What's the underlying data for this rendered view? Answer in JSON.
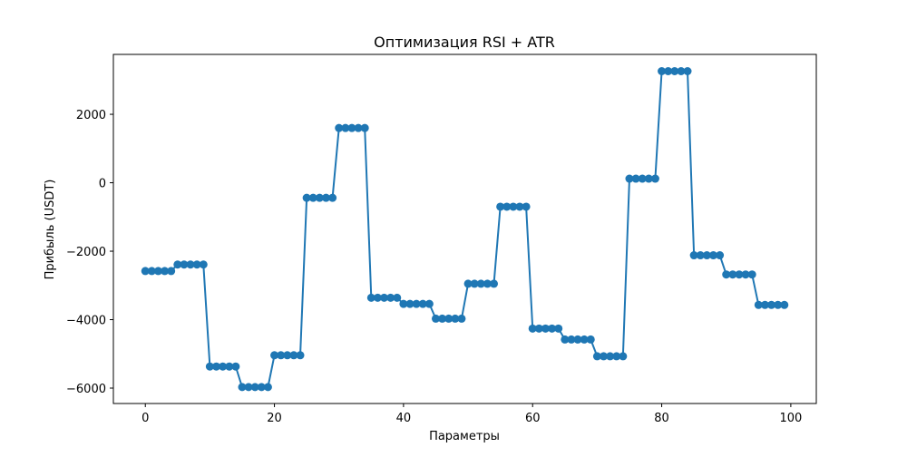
{
  "chart_data": {
    "type": "line",
    "title": "Оптимизация RSI + ATR",
    "xlabel": "Параметры",
    "ylabel": "Прибыль (USDT)",
    "xlim": [
      -4.95,
      103.95
    ],
    "ylim": [
      -6450,
      3750
    ],
    "xticks": [
      0,
      20,
      40,
      60,
      80,
      100
    ],
    "xtick_labels": [
      "0",
      "20",
      "40",
      "60",
      "80",
      "100"
    ],
    "yticks": [
      -6000,
      -4000,
      -2000,
      0,
      2000
    ],
    "ytick_labels": [
      "−6000",
      "−4000",
      "−2000",
      "0",
      "2000"
    ],
    "grid": false,
    "legend": "none",
    "series": [
      {
        "color": "#1f77b4",
        "marker": "circle",
        "x_start": 0,
        "x_step": 1,
        "values": [
          -2580,
          -2580,
          -2580,
          -2580,
          -2580,
          -2390,
          -2390,
          -2390,
          -2390,
          -2390,
          -5370,
          -5370,
          -5370,
          -5370,
          -5370,
          -5970,
          -5970,
          -5970,
          -5970,
          -5970,
          -5040,
          -5040,
          -5040,
          -5040,
          -5040,
          -440,
          -440,
          -440,
          -440,
          -440,
          1600,
          1600,
          1600,
          1600,
          1600,
          -3360,
          -3360,
          -3360,
          -3360,
          -3360,
          -3540,
          -3540,
          -3540,
          -3540,
          -3540,
          -3970,
          -3970,
          -3970,
          -3970,
          -3970,
          -2950,
          -2950,
          -2950,
          -2950,
          -2950,
          -700,
          -700,
          -700,
          -700,
          -700,
          -4260,
          -4260,
          -4260,
          -4260,
          -4260,
          -4580,
          -4580,
          -4580,
          -4580,
          -4580,
          -5070,
          -5070,
          -5070,
          -5070,
          -5070,
          120,
          120,
          120,
          120,
          120,
          3260,
          3260,
          3260,
          3260,
          3260,
          -2120,
          -2120,
          -2120,
          -2120,
          -2120,
          -2680,
          -2680,
          -2680,
          -2680,
          -2680,
          -3570,
          -3570,
          -3570,
          -3570,
          -3570
        ]
      }
    ]
  }
}
